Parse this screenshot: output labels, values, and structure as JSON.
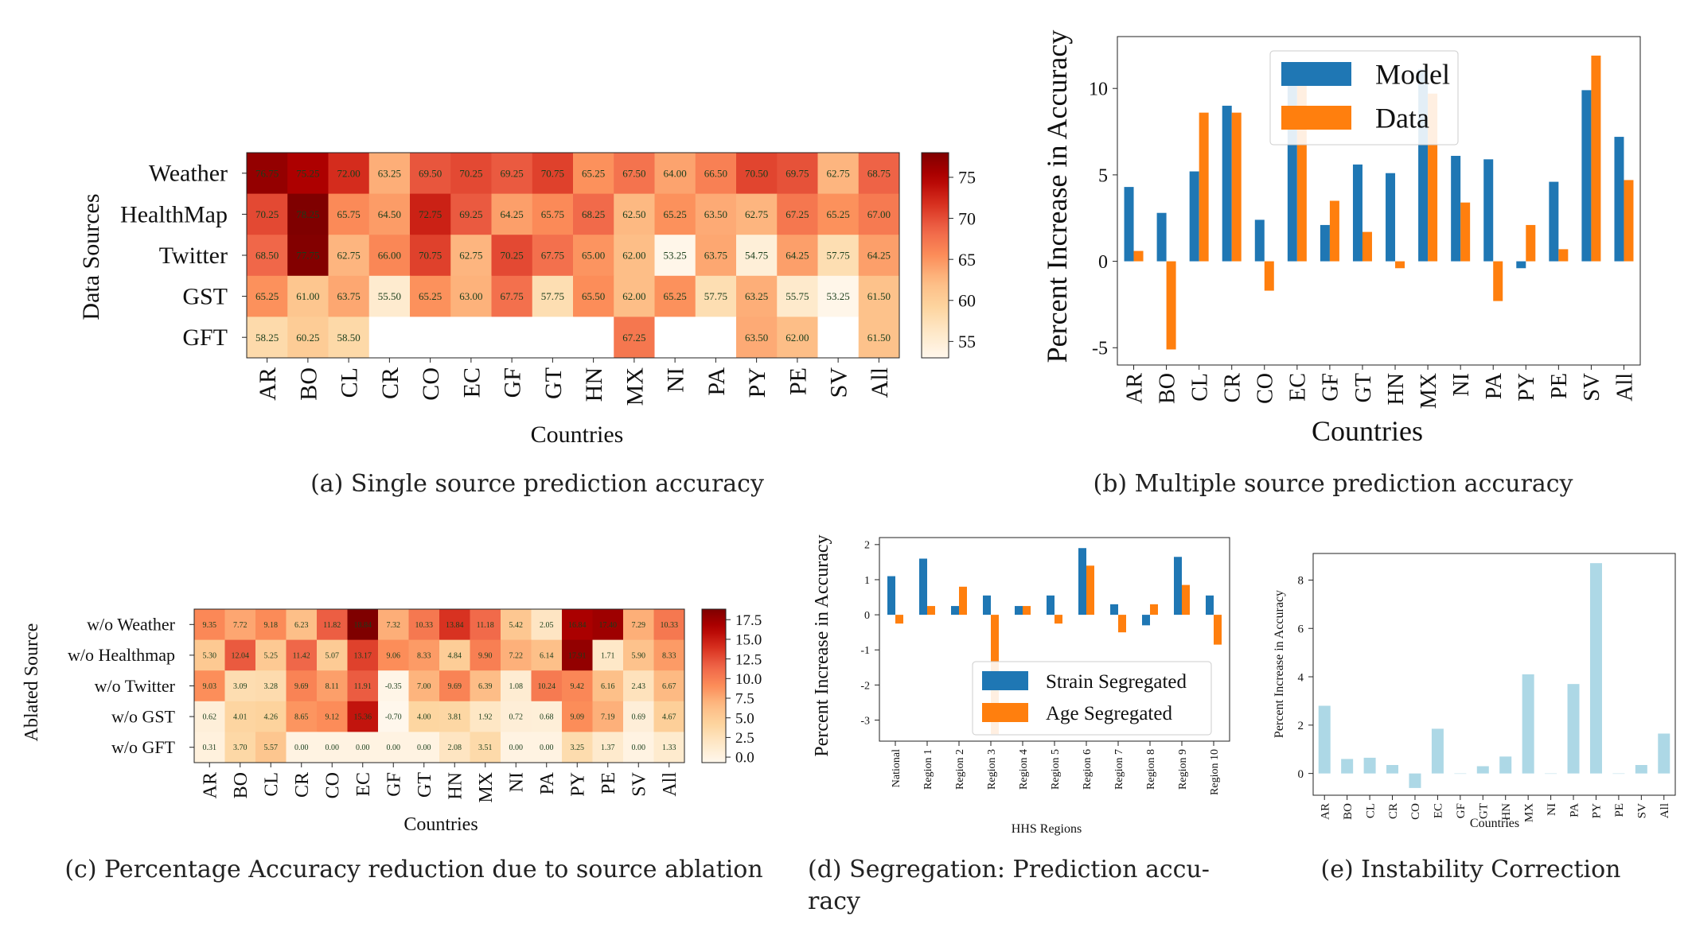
{
  "figures": {
    "a": {
      "caption": "(a) Single source prediction accuracy",
      "xlabel": "Countries",
      "ylabel": "Data Sources"
    },
    "b": {
      "caption": "(b) Multiple source prediction accuracy",
      "xlabel": "Countries",
      "ylabel": "Percent Increase in Accuracy"
    },
    "c": {
      "caption": "(c) Percentage Accuracy reduction due to source ablation",
      "xlabel": "Countries",
      "ylabel": "Ablated Source"
    },
    "d": {
      "caption_line1": "(d) Segregation:  Prediction accu-",
      "caption_line2": "racy",
      "xlabel": "HHS Regions",
      "ylabel": "Percent Increase in Accuracy"
    },
    "e": {
      "caption": "(e) Instability Correction",
      "xlabel": "Countries",
      "ylabel": "Percent Increase in Accuracy"
    }
  },
  "chart_data": [
    {
      "id": "a",
      "type": "heatmap",
      "xlabel": "Countries",
      "ylabel": "Data Sources",
      "x": [
        "AR",
        "BO",
        "CL",
        "CR",
        "CO",
        "EC",
        "GF",
        "GT",
        "HN",
        "MX",
        "NI",
        "PA",
        "PY",
        "PE",
        "SV",
        "All"
      ],
      "y": [
        "Weather",
        "HealthMap",
        "Twitter",
        "GST",
        "GFT"
      ],
      "values": [
        [
          76.75,
          75.25,
          72.0,
          63.25,
          69.5,
          70.25,
          69.25,
          70.75,
          65.25,
          67.5,
          64.0,
          66.5,
          70.5,
          69.75,
          62.75,
          68.75
        ],
        [
          70.25,
          78.25,
          65.75,
          64.5,
          72.75,
          69.25,
          64.25,
          65.75,
          68.25,
          62.5,
          65.25,
          63.5,
          62.75,
          67.25,
          65.25,
          67.0
        ],
        [
          68.5,
          77.75,
          62.75,
          66.0,
          70.75,
          62.75,
          70.25,
          67.75,
          65.0,
          62.0,
          53.25,
          63.75,
          54.75,
          64.25,
          57.75,
          64.25
        ],
        [
          65.25,
          61.0,
          63.75,
          55.5,
          65.25,
          63.0,
          67.75,
          57.75,
          65.5,
          62.0,
          65.25,
          57.75,
          63.25,
          55.75,
          53.25,
          61.5
        ],
        [
          58.25,
          60.25,
          58.5,
          null,
          null,
          null,
          null,
          null,
          null,
          67.25,
          null,
          null,
          63.5,
          62.0,
          null,
          61.5
        ]
      ],
      "colorbar": {
        "min": 53,
        "max": 78,
        "ticks": [
          55,
          60,
          65,
          70,
          75
        ]
      }
    },
    {
      "id": "b",
      "type": "bar",
      "xlabel": "Countries",
      "ylabel": "Percent Increase in Accuracy",
      "categories": [
        "AR",
        "BO",
        "CL",
        "CR",
        "CO",
        "EC",
        "GF",
        "GT",
        "HN",
        "MX",
        "NI",
        "PA",
        "PY",
        "PE",
        "SV",
        "All"
      ],
      "series": [
        {
          "name": "Model",
          "color": "#1f77b4",
          "values": [
            4.3,
            2.8,
            5.2,
            9.0,
            2.4,
            11.4,
            2.1,
            5.6,
            5.1,
            11.1,
            6.1,
            5.9,
            -0.4,
            4.6,
            9.9,
            7.2
          ]
        },
        {
          "name": "Data",
          "color": "#ff7f0e",
          "values": [
            0.6,
            -5.1,
            8.6,
            8.6,
            -1.7,
            11.0,
            3.5,
            1.7,
            -0.4,
            9.7,
            3.4,
            -2.3,
            2.1,
            0.7,
            11.9,
            4.7
          ]
        }
      ],
      "ylim": [
        -6,
        13
      ],
      "yticks": [
        -5,
        0,
        5,
        10
      ],
      "legend": "top-center"
    },
    {
      "id": "c",
      "type": "heatmap",
      "xlabel": "Countries",
      "ylabel": "Ablated Source",
      "x": [
        "AR",
        "BO",
        "CL",
        "CR",
        "CO",
        "EC",
        "GF",
        "GT",
        "HN",
        "MX",
        "NI",
        "PA",
        "PY",
        "PE",
        "SV",
        "All"
      ],
      "y": [
        "w/o Weather",
        "w/o Healthmap",
        "w/o Twitter",
        "w/o GST",
        "w/o GFT"
      ],
      "values": [
        [
          9.35,
          7.72,
          9.18,
          6.23,
          11.82,
          18.84,
          7.32,
          10.33,
          13.84,
          11.18,
          5.42,
          2.05,
          16.84,
          17.4,
          7.29,
          10.33
        ],
        [
          5.3,
          12.04,
          5.25,
          11.42,
          5.07,
          13.17,
          9.06,
          8.33,
          4.84,
          9.9,
          7.22,
          6.14,
          17.91,
          1.71,
          5.9,
          8.33
        ],
        [
          9.03,
          3.09,
          3.28,
          9.69,
          8.11,
          11.91,
          -0.35,
          7.0,
          9.69,
          6.39,
          1.08,
          10.24,
          9.42,
          6.16,
          2.43,
          6.67
        ],
        [
          0.62,
          4.01,
          4.26,
          8.65,
          9.12,
          15.36,
          -0.7,
          4.0,
          3.81,
          1.92,
          0.72,
          0.68,
          9.09,
          7.19,
          0.69,
          4.67
        ],
        [
          0.31,
          3.7,
          5.57,
          0.0,
          0.0,
          0.0,
          0.0,
          0.0,
          2.08,
          3.51,
          0.0,
          0.0,
          3.25,
          1.37,
          0.0,
          1.33
        ]
      ],
      "colorbar": {
        "min": -0.7,
        "max": 18.84,
        "ticks": [
          0.0,
          2.5,
          5.0,
          7.5,
          10.0,
          12.5,
          15.0,
          17.5
        ]
      }
    },
    {
      "id": "d",
      "type": "bar",
      "xlabel": "HHS Regions",
      "ylabel": "Percent Increase in Accuracy",
      "categories": [
        "National",
        "Region 1",
        "Region 2",
        "Region 3",
        "Region 4",
        "Region 5",
        "Region 6",
        "Region 7",
        "Region 8",
        "Region 9",
        "Region 10"
      ],
      "series": [
        {
          "name": "Strain Segregated",
          "color": "#1f77b4",
          "values": [
            1.1,
            1.6,
            0.25,
            0.55,
            0.25,
            0.55,
            1.9,
            0.3,
            -0.3,
            1.65,
            0.55
          ]
        },
        {
          "name": "Age Segregated",
          "color": "#ff7f0e",
          "values": [
            -0.25,
            0.25,
            0.8,
            -3.4,
            0.25,
            -0.25,
            1.4,
            -0.5,
            0.3,
            0.85,
            -0.85
          ]
        }
      ],
      "ylim": [
        -3.6,
        2.2
      ],
      "yticks": [
        -3,
        -2,
        -1,
        0,
        1,
        2
      ],
      "legend": "bottom-right"
    },
    {
      "id": "e",
      "type": "bar",
      "xlabel": "Countries",
      "ylabel": "Percent Increase in Accuracy",
      "categories": [
        "AR",
        "BO",
        "CL",
        "CR",
        "CO",
        "EC",
        "GF",
        "GT",
        "HN",
        "MX",
        "NI",
        "PA",
        "PY",
        "PE",
        "SV",
        "All"
      ],
      "series": [
        {
          "color": "#add8e6",
          "values": [
            2.8,
            0.6,
            0.65,
            0.35,
            -0.6,
            1.85,
            0.0,
            0.3,
            0.7,
            4.1,
            0.0,
            3.7,
            8.7,
            0.0,
            0.35,
            1.65
          ]
        }
      ],
      "ylim": [
        -0.9,
        9.1
      ],
      "yticks": [
        0,
        2,
        4,
        6,
        8
      ]
    }
  ]
}
